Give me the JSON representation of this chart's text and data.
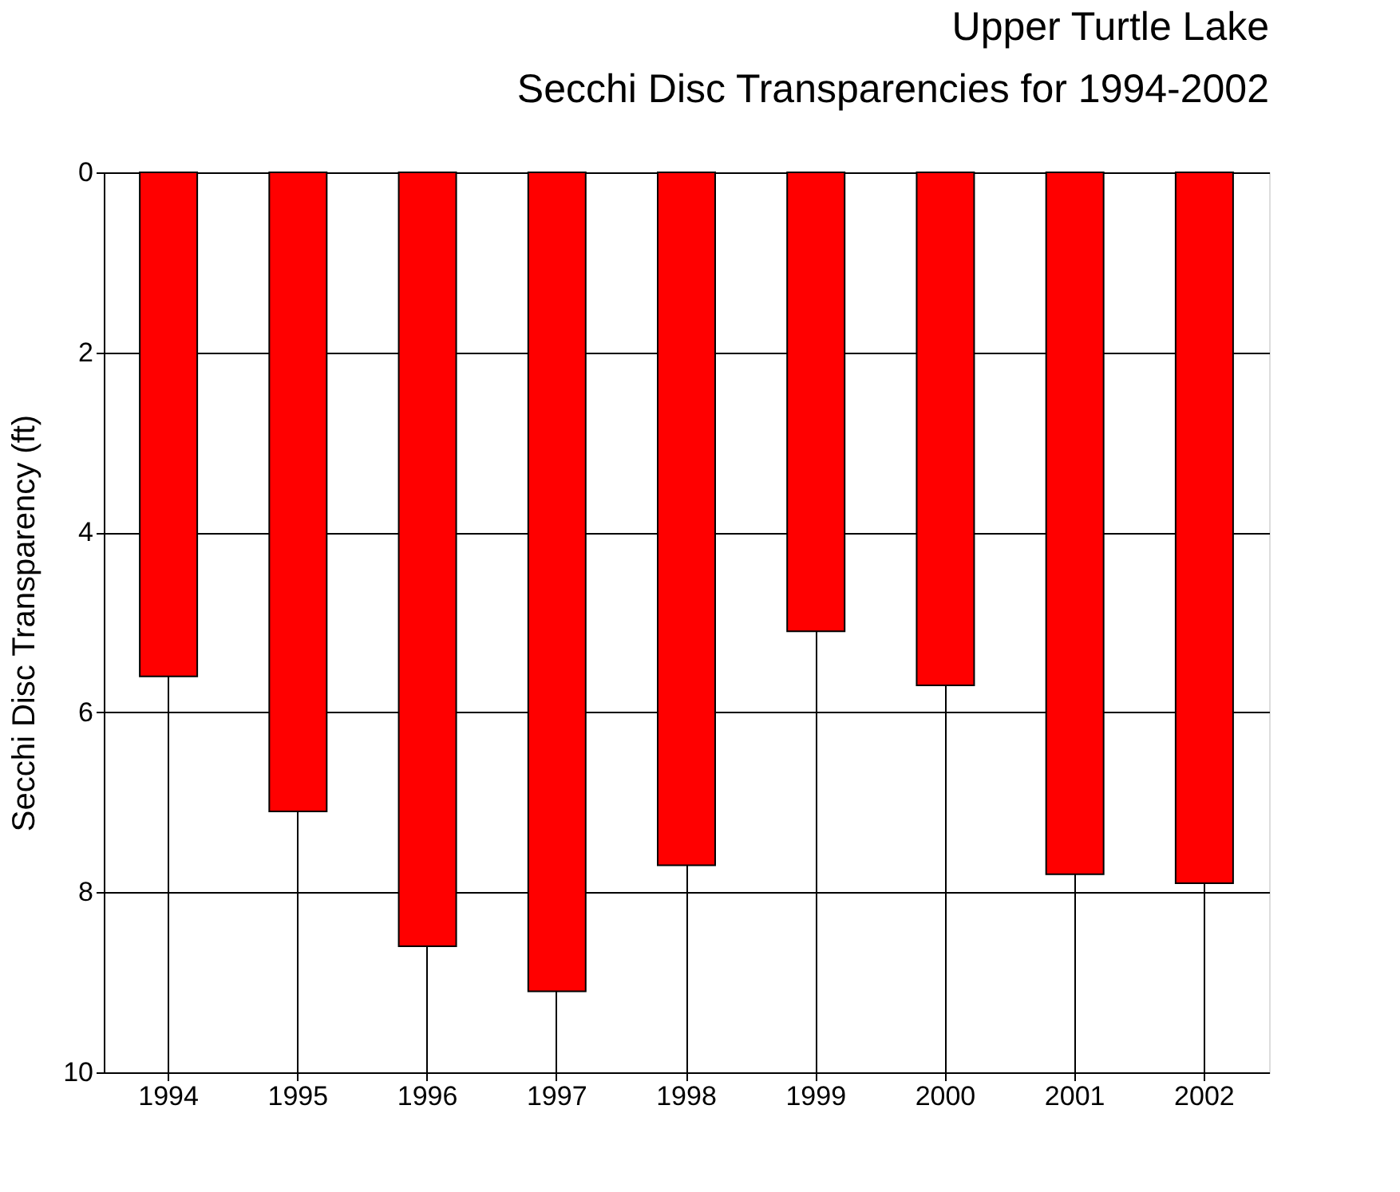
{
  "chart_data": {
    "type": "bar",
    "title": "Upper Turtle Lake",
    "subtitle": "Secchi Disc Transparencies for 1994-2002",
    "ylabel": "Secchi Disc Transparency (ft)",
    "categories": [
      "1994",
      "1995",
      "1996",
      "1997",
      "1998",
      "1999",
      "2000",
      "2001",
      "2002"
    ],
    "values": [
      5.6,
      7.1,
      8.6,
      9.1,
      7.7,
      5.1,
      5.7,
      7.8,
      7.9
    ],
    "color": "#ff0000",
    "ylim": [
      10,
      0
    ],
    "yticks": [
      0,
      2,
      4,
      6,
      8,
      10
    ],
    "grid": true
  }
}
